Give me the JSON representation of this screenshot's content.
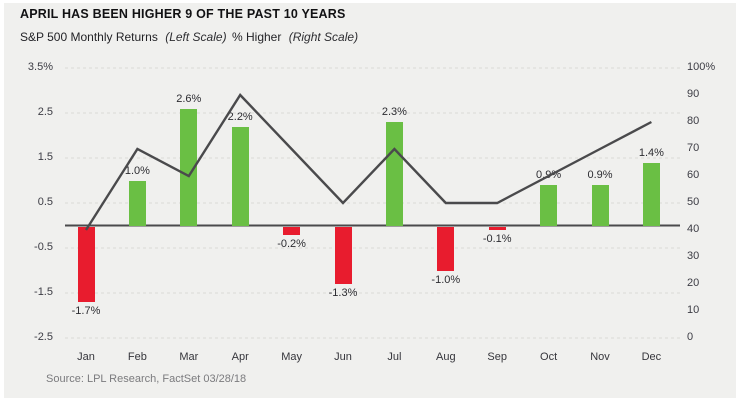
{
  "source": {
    "text": "Source: LPL Research, FactSet 03/28/18"
  },
  "colors": {
    "background": "#f0f0ee",
    "grid": "#dadad7",
    "axis_line": "#4a4a4c",
    "bar_positive": "#6abf44",
    "bar_negative": "#e81c2e",
    "line": "#4a4a4c",
    "text": "#2b2b2e",
    "muted_text": "#7b7b7e"
  },
  "chart_data": {
    "type": "bar+line",
    "title": "APRIL HAS BEEN HIGHER 9 OF THE PAST 10 YEARS",
    "legend_position": "top-left",
    "legend": [
      {
        "label": "S&P 500 Monthly Returns",
        "scale_note": "(Left Scale)",
        "series": "bars"
      },
      {
        "label": "% Higher",
        "scale_note": "(Right Scale)",
        "series": "line"
      }
    ],
    "categories": [
      "Jan",
      "Feb",
      "Mar",
      "Apr",
      "May",
      "Jun",
      "Jul",
      "Aug",
      "Sep",
      "Oct",
      "Nov",
      "Dec"
    ],
    "series": [
      {
        "name": "S&P 500 Monthly Returns",
        "type": "bar",
        "axis": "left",
        "unit": "%",
        "values": [
          -1.7,
          1.0,
          2.6,
          2.2,
          -0.2,
          -1.3,
          2.3,
          -1.0,
          -0.1,
          0.9,
          0.9,
          1.4
        ],
        "labels": [
          "-1.7%",
          "1.0%",
          "2.6%",
          "2.2%",
          "-0.2%",
          "-1.3%",
          "2.3%",
          "-1.0%",
          "-0.1%",
          "0.9%",
          "0.9%",
          "1.4%"
        ],
        "positive_color": "#6abf44",
        "negative_color": "#e81c2e"
      },
      {
        "name": "% Higher",
        "type": "line",
        "axis": "right",
        "unit": "%",
        "values": [
          40,
          70,
          60,
          90,
          70,
          50,
          70,
          50,
          50,
          60,
          70,
          80
        ],
        "color": "#4a4a4c"
      }
    ],
    "left_axis": {
      "ticks": [
        "3.5%",
        "2.5",
        "1.5",
        "0.5",
        "-0.5",
        "-1.5",
        "-2.5"
      ],
      "values": [
        3.5,
        2.5,
        1.5,
        0.5,
        -0.5,
        -1.5,
        -2.5
      ],
      "min": -2.5,
      "max": 3.5
    },
    "right_axis": {
      "ticks": [
        "100%",
        "90",
        "80",
        "70",
        "60",
        "50",
        "40",
        "30",
        "20",
        "10",
        "0"
      ],
      "values": [
        100,
        90,
        80,
        70,
        60,
        50,
        40,
        30,
        20,
        10,
        0
      ],
      "min": 0,
      "max": 100
    },
    "grid": "horizontal-dashed"
  }
}
